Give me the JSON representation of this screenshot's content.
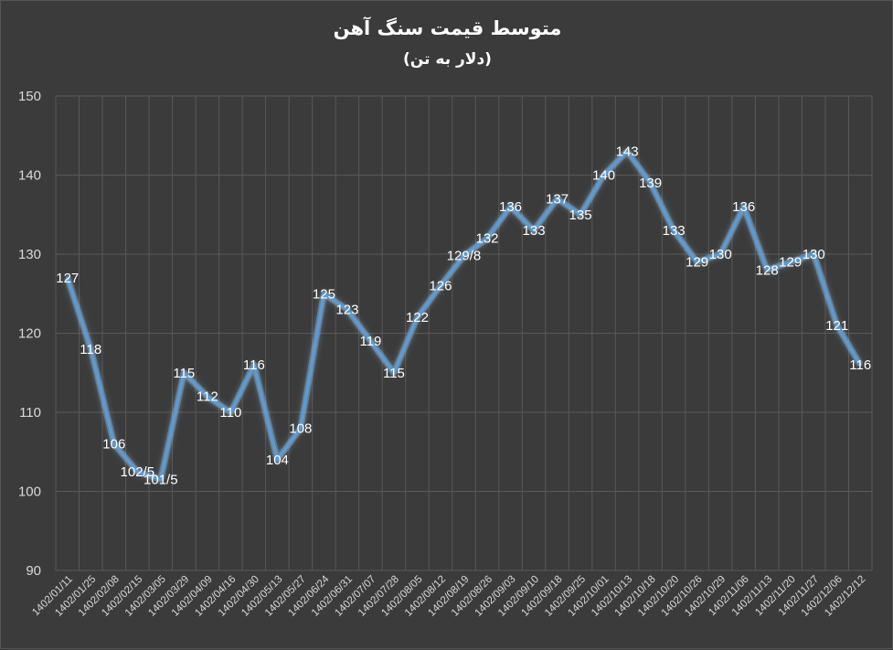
{
  "chart_data": {
    "type": "line",
    "title": "متوسط قیمت سنگ آهن",
    "subtitle": "(دلار به تن)",
    "ylim": [
      90,
      150
    ],
    "yticks": [
      90,
      100,
      110,
      120,
      130,
      140,
      150
    ],
    "grid": true,
    "categories": [
      "1402/01/11",
      "1402/01/25",
      "1402/02/08",
      "1402/02/15",
      "1402/03/05",
      "1402/03/29",
      "1402/04/09",
      "1402/04/16",
      "1402/04/30",
      "1402/05/13",
      "1402/05/27",
      "1402/06/24",
      "1402/06/31",
      "1402/07/07",
      "1402/07/28",
      "1402/08/05",
      "1402/08/12",
      "1402/08/19",
      "1402/08/26",
      "1402/09/03",
      "1402/09/10",
      "1402/09/18",
      "1402/09/25",
      "1402/10/01",
      "1402/10/13",
      "1402/10/18",
      "1402/10/20",
      "1402/10/26",
      "1402/10/29",
      "1402/11/06",
      "1402/11/13",
      "1402/11/20",
      "1402/11/27",
      "1402/12/06",
      "1402/12/12"
    ],
    "values": [
      127,
      118,
      106,
      102.5,
      101.5,
      115,
      112,
      110,
      116,
      104,
      108,
      125,
      123,
      119,
      115,
      122,
      126,
      129.8,
      132,
      136,
      133,
      137,
      135,
      140,
      143,
      139,
      133,
      129,
      130,
      136,
      128,
      129,
      130,
      121,
      116
    ],
    "data_labels": [
      "127",
      "118",
      "106",
      "102/5",
      "101/5",
      "115",
      "112",
      "110",
      "116",
      "104",
      "108",
      "125",
      "123",
      "119",
      "115",
      "122",
      "126",
      "129/8",
      "132",
      "136",
      "133",
      "137",
      "135",
      "140",
      "143",
      "139",
      "133",
      "129",
      "130",
      "136",
      "128",
      "129",
      "130",
      "121",
      "116"
    ],
    "line_color": "#5b9bd5",
    "glow_color": "#9cc3e6",
    "grid_color": "#595959"
  }
}
